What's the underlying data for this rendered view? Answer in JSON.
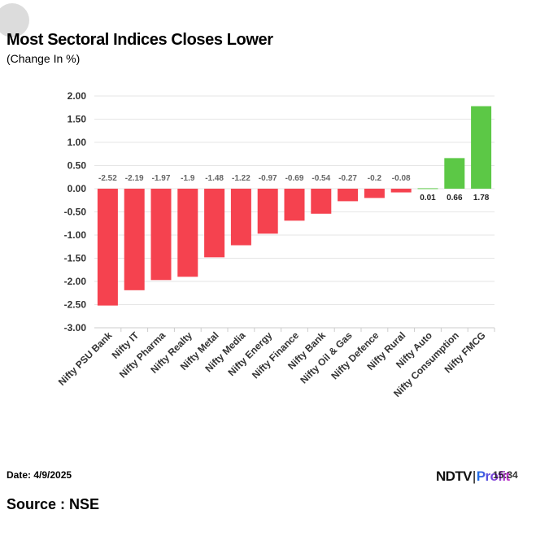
{
  "header": {
    "title": "Most Sectoral Indices Closes Lower",
    "subtitle": "(Change In %)"
  },
  "footer": {
    "date_label": "Date: 4/9/2025",
    "time_fragment": "15:34",
    "source_label": "Source : NSE",
    "logo_brand": "NDTV",
    "logo_sep": "|",
    "logo_product": "Profit"
  },
  "colors": {
    "negative": "#f5424f",
    "positive": "#5cc846",
    "grid": "#e6e6e6",
    "axis": "#cccccc"
  },
  "chart_data": {
    "type": "bar",
    "title": "Most Sectoral Indices Closes Lower",
    "subtitle": "(Change In %)",
    "xlabel": "",
    "ylabel": "",
    "ylim": [
      -3.0,
      2.0
    ],
    "yticks": [
      "2.00",
      "1.50",
      "1.00",
      "0.50",
      "0.00",
      "-0.50",
      "-1.00",
      "-1.50",
      "-2.00",
      "-2.50",
      "-3.00"
    ],
    "grid": true,
    "legend": "none",
    "categories": [
      "Nifty PSU Bank",
      "Nifty IT",
      "Nifty Pharma",
      "Nifty Realty",
      "Nifty Metal",
      "Nifty Media",
      "Nifty Energy",
      "Nifty Finance",
      "Nifty Bank",
      "Nifty Oil & Gas",
      "Nifty Defence",
      "Nifty Rural",
      "Nifty Auto",
      "Nifty Consumption",
      "Nifty FMCG"
    ],
    "values": [
      -2.52,
      -2.19,
      -1.97,
      -1.9,
      -1.48,
      -1.22,
      -0.97,
      -0.69,
      -0.54,
      -0.27,
      -0.2,
      -0.08,
      0.01,
      0.66,
      1.78
    ],
    "value_labels": [
      "-2.52",
      "-2.19",
      "-1.97",
      "-1.9",
      "-1.48",
      "-1.22",
      "-0.97",
      "-0.69",
      "-0.54",
      "-0.27",
      "-0.2",
      "-0.08",
      "0.01",
      "0.66",
      "1.78"
    ]
  }
}
